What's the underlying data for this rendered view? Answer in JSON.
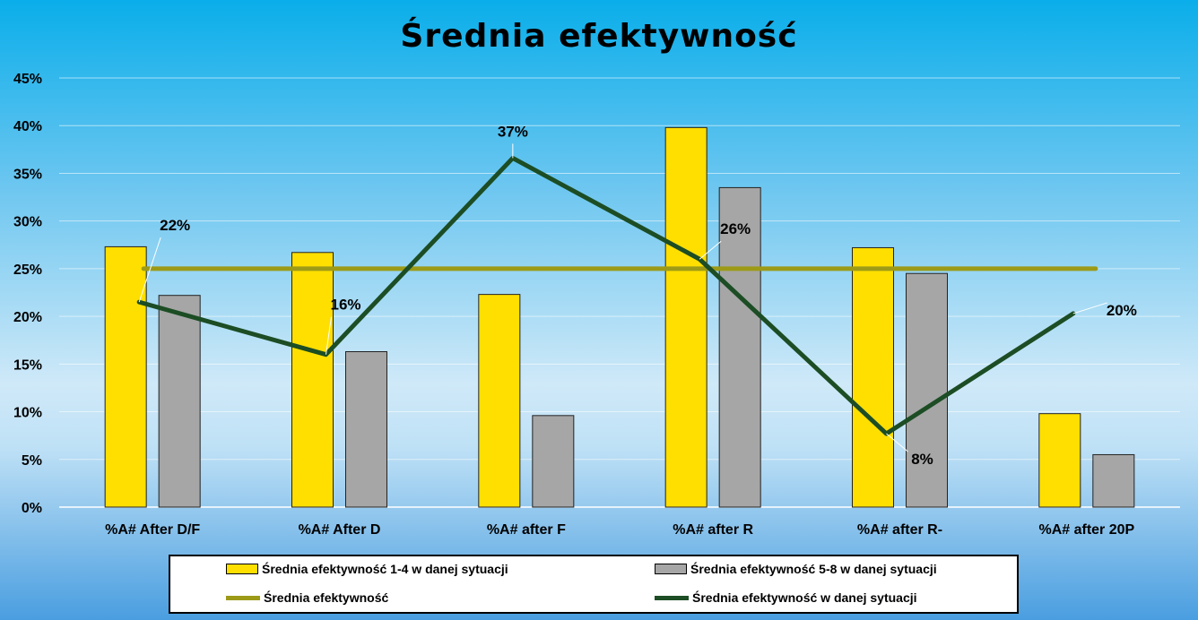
{
  "chart_data": {
    "type": "bar",
    "title": "Średnia efektywność",
    "categories": [
      "%A# After D/F",
      "%A# After D",
      "%A# after F",
      "%A# after R",
      "%A# after R-",
      "%A# after 20P"
    ],
    "ylim": [
      0,
      0.45
    ],
    "yticks": [
      0,
      0.05,
      0.1,
      0.15,
      0.2,
      0.25,
      0.3,
      0.35,
      0.4,
      0.45
    ],
    "ytick_labels": [
      "0%",
      "5%",
      "10%",
      "15%",
      "20%",
      "25%",
      "30%",
      "35%",
      "40%",
      "45%"
    ],
    "grid": true,
    "legend_position": "bottom",
    "series": [
      {
        "name": "Średnia efektywność 1-4 w danej sytuacji",
        "kind": "bar",
        "color": "#ffdf00",
        "values": [
          0.273,
          0.267,
          0.223,
          0.398,
          0.272,
          0.098
        ]
      },
      {
        "name": "Średnia efektywność 5-8 w danej sytuacji",
        "kind": "bar",
        "color": "#a6a6a6",
        "values": [
          0.222,
          0.163,
          0.096,
          0.335,
          0.245,
          0.055
        ]
      },
      {
        "name": "Średnia efektywność",
        "kind": "line",
        "color": "#9c9a16",
        "values": [
          0.25,
          0.25,
          0.25,
          0.25,
          0.25,
          0.25
        ]
      },
      {
        "name": "Średnia efektywność w danej sytuacji",
        "kind": "line",
        "color": "#1c4d24",
        "values": [
          0.215,
          0.16,
          0.366,
          0.26,
          0.077,
          0.203
        ],
        "labels": [
          "22%",
          "16%",
          "37%",
          "26%",
          "8%",
          "20%"
        ]
      }
    ]
  },
  "legend": {
    "items": [
      {
        "text": "Średnia efektywność 1-4 w danej sytuacji",
        "color": "#ffdf00",
        "kind": "box"
      },
      {
        "text": "Średnia efektywność 5-8 w danej sytuacji",
        "color": "#a6a6a6",
        "kind": "box"
      },
      {
        "text": "Średnia efektywność",
        "color": "#9c9a16",
        "kind": "line"
      },
      {
        "text": "Średnia efektywność w danej sytuacji",
        "color": "#1c4d24",
        "kind": "line"
      }
    ]
  }
}
